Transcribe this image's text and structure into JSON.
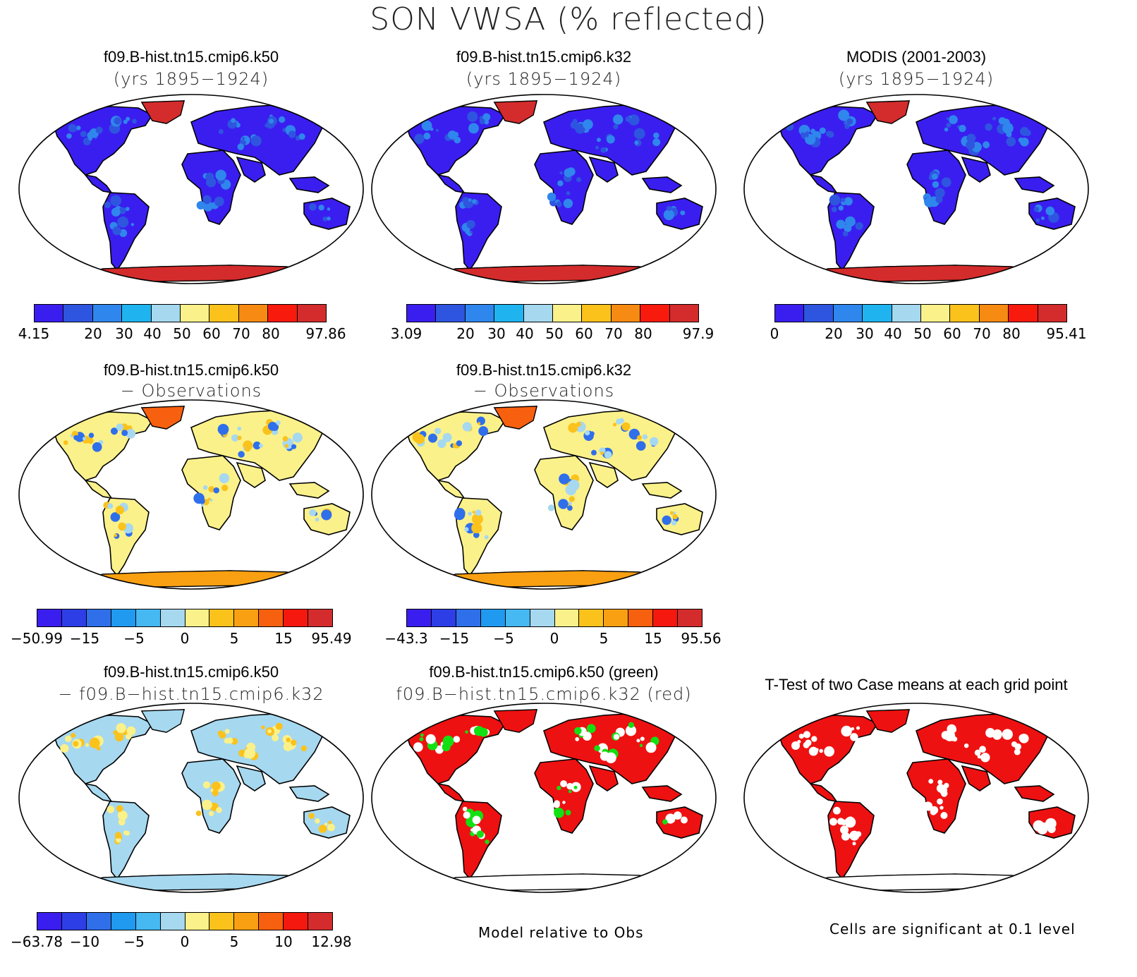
{
  "title": "SON VWSA (% reflected)",
  "colors": {
    "albedo_scale": [
      "#3a1ef0",
      "#2e55e0",
      "#2f86ec",
      "#1fb4f0",
      "#a6d8f0",
      "#fbf18a",
      "#fbc21c",
      "#f78a12",
      "#f91a0e",
      "#d42c2c"
    ],
    "diff_scale": [
      "#3a1ef0",
      "#2e3ee6",
      "#2f6fea",
      "#1f9af0",
      "#46b8f2",
      "#a6d8f0",
      "#fbf18a",
      "#fbc21c",
      "#f9a012",
      "#f7600e",
      "#f5180e",
      "#d42c2c"
    ],
    "land_green": "#12e012",
    "land_red": "#ee1111"
  },
  "panels": [
    {
      "title1": "f09.B-hist.tn15.cmip6.k50",
      "title2": "(yrs 1895−1924)",
      "map": "albedo",
      "ticks": [
        "4.15",
        "20",
        "30",
        "40",
        "50",
        "60",
        "70",
        "80",
        "97.86"
      ]
    },
    {
      "title1": "f09.B-hist.tn15.cmip6.k32",
      "title2": "(yrs 1895−1924)",
      "map": "albedo",
      "ticks": [
        "3.09",
        "20",
        "30",
        "40",
        "50",
        "60",
        "70",
        "80",
        "97.9"
      ]
    },
    {
      "title1": "MODIS (2001-2003)",
      "title2": "(yrs 1895−1924)",
      "map": "albedo",
      "ticks": [
        "0",
        "20",
        "30",
        "40",
        "50",
        "60",
        "70",
        "80",
        "95.41"
      ]
    },
    {
      "title1": "f09.B-hist.tn15.cmip6.k50",
      "title2": "− Observations",
      "map": "diff",
      "ticks": [
        "−50.99",
        "−15",
        "−5",
        "0",
        "5",
        "15",
        "95.49"
      ]
    },
    {
      "title1": "f09.B-hist.tn15.cmip6.k32",
      "title2": "− Observations",
      "map": "diff",
      "ticks": [
        "−43.3",
        "−15",
        "−5",
        "0",
        "5",
        "15",
        "95.56"
      ]
    },
    {
      "title1": "f09.B-hist.tn15.cmip6.k50",
      "title2": "− f09.B−hist.tn15.cmip6.k32",
      "map": "casediff",
      "ticks": [
        "−63.78",
        "−10",
        "−5",
        "0",
        "5",
        "10",
        "12.98"
      ]
    },
    {
      "title1": "f09.B-hist.tn15.cmip6.k50 (green)",
      "title2": "f09.B−hist.tn15.cmip6.k32 (red)",
      "map": "greenred",
      "note": "Model relative to Obs"
    },
    {
      "title1": "T-Test of two Case means at each grid point",
      "title2": "",
      "map": "ttest",
      "note": "Cells are significant at 0.1 level"
    }
  ]
}
